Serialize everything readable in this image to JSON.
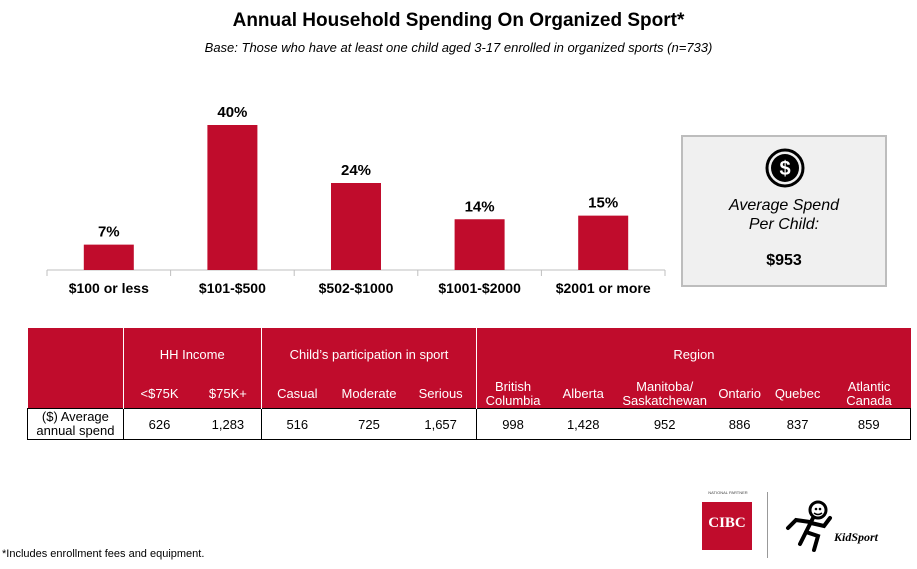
{
  "title": "Annual Household Spending On Organized Sport*",
  "subtitle": "Base: Those who have at least one child aged 3-17 enrolled in organized sports (n=733)",
  "chart_data": {
    "type": "bar",
    "categories": [
      "$100 or less",
      "$101-$500",
      "$502-$1000",
      "$1001-$2000",
      "$2001 or more"
    ],
    "values": [
      7,
      40,
      24,
      14,
      15
    ],
    "value_labels": [
      "7%",
      "40%",
      "24%",
      "14%",
      "15%"
    ],
    "ylim": [
      0,
      40
    ],
    "bar_color": "#c00c2c"
  },
  "average": {
    "icon": "dollar-circle-icon",
    "label_line1": "Average Spend",
    "label_line2": "Per Child:",
    "value": "$953"
  },
  "table": {
    "groups": {
      "income": "HH Income",
      "participation": "Child’s participation in sport",
      "region": "Region"
    },
    "columns": {
      "under75k": "<$75K",
      "over75k": "$75K+",
      "casual": "Casual",
      "moderate": "Moderate",
      "serious": "Serious",
      "bc_line1": "British",
      "bc_line2": "Columbia",
      "alberta": "Alberta",
      "mansask_line1": "Manitoba/",
      "mansask_line2": "Saskatchewan",
      "ontario": "Ontario",
      "quebec": "Quebec",
      "atlantic_line1": "Atlantic",
      "atlantic_line2": "Canada"
    },
    "row_label_line1": "($) Average",
    "row_label_line2": "annual spend",
    "values": {
      "under75k": "626",
      "over75k": "1,283",
      "casual": "516",
      "moderate": "725",
      "serious": "1,657",
      "bc": "998",
      "alberta": "1,428",
      "mansask": "952",
      "ontario": "886",
      "quebec": "837",
      "atlantic": "859"
    }
  },
  "footnote": "*Includes enrollment fees and equipment.",
  "logos": {
    "cibc_tagline": "NATIONAL PARTNER",
    "cibc": "CIBC",
    "kidsport": "KidSport"
  },
  "colors": {
    "accent": "#c00c2c",
    "box_bg": "#f0f0f0"
  }
}
